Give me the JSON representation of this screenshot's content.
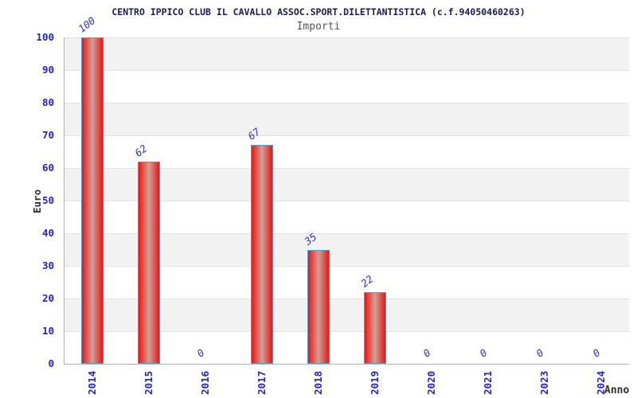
{
  "chart_data": {
    "type": "bar",
    "title": "CENTRO IPPICO CLUB IL CAVALLO ASSOC.SPORT.DILETTANTISTICA (c.f.94050460263)",
    "subtitle": "Importi",
    "xlabel": "Anno",
    "ylabel": "Euro",
    "categories": [
      "2014",
      "2015",
      "2016",
      "2017",
      "2018",
      "2019",
      "2020",
      "2021",
      "2023",
      "2024"
    ],
    "values": [
      100,
      62,
      0,
      67,
      35,
      22,
      0,
      0,
      0,
      0
    ],
    "ylim": [
      0,
      100
    ],
    "yticks": [
      0,
      10,
      20,
      30,
      40,
      50,
      60,
      70,
      80,
      90,
      100
    ],
    "grid": "horizontal-bands-alternating",
    "legend": "none",
    "colors": {
      "bar_fill_edge": "#ee1212",
      "bar_fill_mid": "#e4423a",
      "bar_fill_center": "#cfa09b",
      "bar_border": "#5b9bd5",
      "tick_label": "#2323cd",
      "value_label": "#3232bb",
      "title": "#1a1a52",
      "subtitle": "#555555",
      "axis_title": "#303030",
      "band_gray": "#f2f2f2",
      "band_white": "#ffffff",
      "gridline": "#e2e2e2",
      "axis_line": "#b0b0b0",
      "background": "#ffffff"
    }
  }
}
